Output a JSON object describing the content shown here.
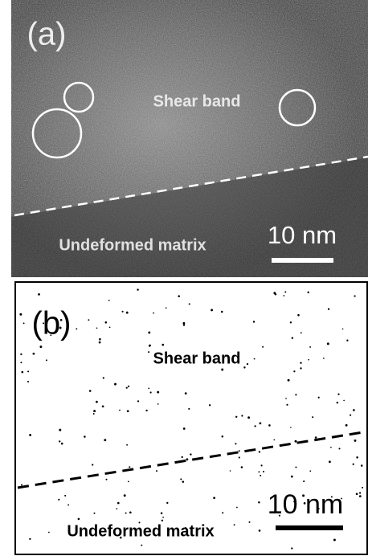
{
  "panels": [
    {
      "label": "(a)",
      "region_top": "Shear band",
      "region_bottom": "Undeformed matrix",
      "scale_bar": "10 nm"
    },
    {
      "label": "(b)",
      "region_top": "Shear band",
      "region_bottom": "Undeformed matrix",
      "scale_bar": "10 nm"
    }
  ]
}
